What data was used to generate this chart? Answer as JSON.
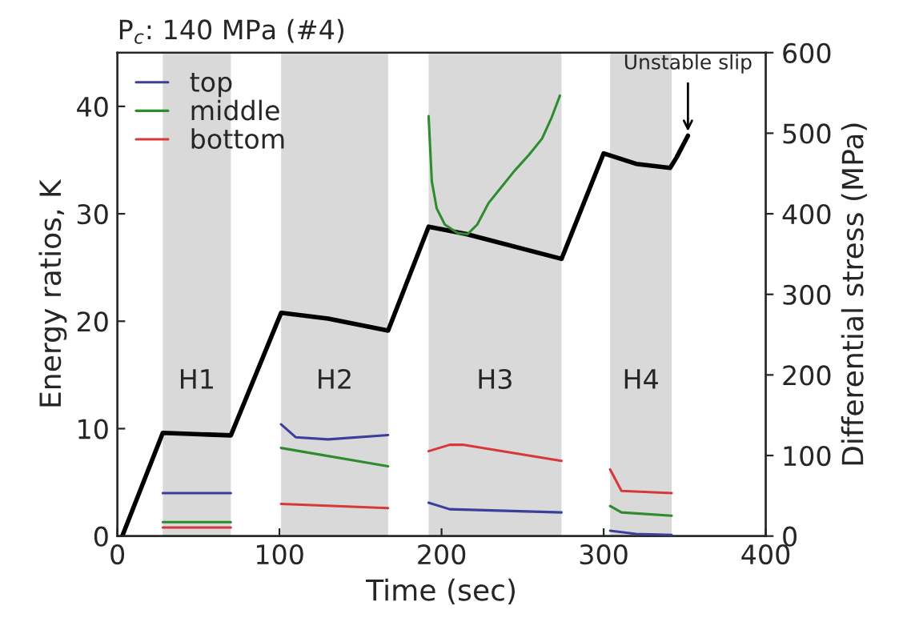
{
  "chart_data": {
    "type": "line",
    "title": "P$_{c}$: 140 MPa (#4)",
    "xlabel": "Time (sec)",
    "ylabel": "Energy ratios, K",
    "y2label": "Differential stress (MPa)",
    "xlim": [
      0,
      400
    ],
    "xticks": [
      0,
      100,
      200,
      300,
      400
    ],
    "ylim": [
      0,
      45
    ],
    "yticks": [
      0,
      10,
      20,
      30,
      40
    ],
    "y2lim": [
      0,
      600
    ],
    "y2ticks": [
      0,
      100,
      200,
      300,
      400,
      500,
      600
    ],
    "grid": false,
    "legend": "top left",
    "marker": "none",
    "line_style": "solid",
    "bands": [
      {
        "axis": "x",
        "from": 28,
        "to": 70,
        "label": "H1",
        "color": "#d9d9d9"
      },
      {
        "axis": "x",
        "from": 101,
        "to": 167,
        "label": "H2",
        "color": "#d9d9d9"
      },
      {
        "axis": "x",
        "from": 192,
        "to": 274,
        "label": "H3",
        "color": "#d9d9d9"
      },
      {
        "axis": "x",
        "from": 304,
        "to": 342,
        "label": "H4",
        "color": "#d9d9d9"
      }
    ],
    "annotations": [
      "Unstable slip"
    ],
    "series": [
      {
        "name": "top",
        "color": "#3b3f9c",
        "x": [
          28,
          70,
          null,
          101,
          110,
          130,
          167,
          null,
          192,
          205,
          274,
          null,
          304,
          320,
          342
        ],
        "values": [
          4.0,
          4.0,
          null,
          10.4,
          9.2,
          9.0,
          9.4,
          null,
          3.1,
          2.5,
          2.2,
          null,
          0.5,
          0.2,
          0.1
        ]
      },
      {
        "name": "middle",
        "color": "#2e8b2e",
        "x": [
          28,
          70,
          null,
          101,
          167,
          null,
          192,
          194,
          197,
          202,
          210,
          216,
          222,
          229,
          237,
          245,
          254,
          262,
          268,
          273,
          null,
          304,
          311,
          342
        ],
        "values": [
          1.3,
          1.3,
          null,
          8.2,
          6.5,
          null,
          39.1,
          33,
          30.5,
          29,
          28.2,
          28.1,
          29,
          31,
          32.5,
          34,
          35.5,
          37,
          39,
          41,
          null,
          2.8,
          2.2,
          1.9
        ]
      },
      {
        "name": "bottom",
        "color": "#d9383a",
        "x": [
          28,
          70,
          null,
          101,
          167,
          null,
          192,
          205,
          213,
          274,
          null,
          304,
          311,
          342
        ],
        "values": [
          0.8,
          0.8,
          null,
          3.0,
          2.6,
          null,
          7.9,
          8.5,
          8.5,
          7.0,
          null,
          6.2,
          4.2,
          4.0
        ]
      },
      {
        "color": "#000000",
        "axis": "y2",
        "x": [
          3,
          28,
          70,
          101,
          130,
          167,
          192,
          215,
          274,
          300,
          320,
          341,
          345,
          352
        ],
        "values": [
          0,
          128,
          125,
          277,
          270,
          255,
          384,
          375,
          344,
          475,
          462,
          457,
          470,
          497
        ]
      }
    ]
  }
}
